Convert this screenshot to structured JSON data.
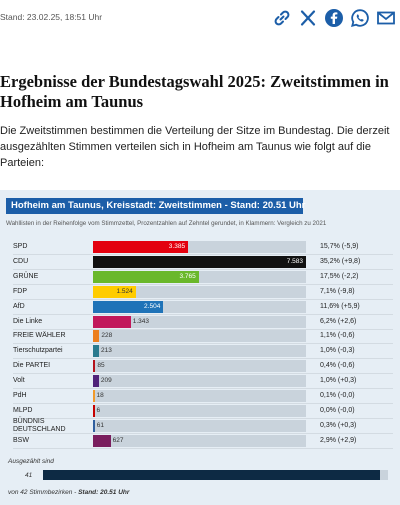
{
  "header": {
    "stand": "Stand: 23.02.25, 18:51 Uhr",
    "share_icons": [
      "link-icon",
      "x-icon",
      "facebook-icon",
      "whatsapp-icon",
      "mail-icon"
    ]
  },
  "article": {
    "title": "Ergebnisse der Bundestagswahl 2025: Zweitstimmen in Hofheim am Taunus",
    "intro": "Die Zweitstimmen bestimmen die Verteilung der Sitze im Bundestag. Die derzeit ausgezählten Stimmen verteilen sich in Hofheim am Taunus wie folgt auf die Parteien:"
  },
  "chart_data": {
    "type": "bar",
    "title": "Hofheim am Taunus, Kreisstadt: Zweitstimmen - Stand: 20.51 Uhr",
    "subtitle": "Wahllisten in der Reihenfolge vom Stimmzettel, Prozentzahlen auf Zehntel gerundet, in Klammern: Vergleich zu 2021",
    "categories": [
      "SPD",
      "CDU",
      "GRÜNE",
      "FDP",
      "AfD",
      "Die Linke",
      "FREIE WÄHLER",
      "Tierschutzpartei",
      "Die PARTEI",
      "Volt",
      "PdH",
      "MLPD",
      "BÜNDNIS DEUTSCHLAND",
      "BSW"
    ],
    "values": [
      3385,
      7583,
      3765,
      1524,
      2504,
      1343,
      228,
      213,
      85,
      209,
      18,
      6,
      61,
      627
    ],
    "value_labels": [
      "3.385",
      "7.583",
      "3.765",
      "1.524",
      "2.504",
      "1.343",
      "228",
      "213",
      "85",
      "209",
      "18",
      "6",
      "61",
      "627"
    ],
    "percent_labels": [
      "15,7% (-5,9)",
      "35,2% (+9,8)",
      "17,5% (-2,2)",
      "7,1% (-9,8)",
      "11,6% (+5,9)",
      "6,2% (+2,6)",
      "1,1% (-0,6)",
      "1,0% (-0,3)",
      "0,4% (-0,6)",
      "1,0% (+0,3)",
      "0,1% (-0,0)",
      "0,0% (-0,0)",
      "0,3% (+0,3)",
      "2,9% (+2,9)"
    ],
    "colors": [
      "#e3000f",
      "#111111",
      "#6ab82b",
      "#ffcc00",
      "#1f73b8",
      "#c2185b",
      "#ec7f1e",
      "#2a7b8f",
      "#b5121b",
      "#502379",
      "#f19a2c",
      "#c60000",
      "#2f5f9f",
      "#7a1e5e"
    ],
    "xlim": [
      0,
      7583
    ],
    "grid": false,
    "counted": {
      "label": "Ausgezählt sind",
      "value": 41,
      "value_label": "41",
      "total": 42,
      "footer_prefix": "von 42 Stimmbezirken - ",
      "footer_stand": "Stand: 20.51 Uhr"
    }
  }
}
